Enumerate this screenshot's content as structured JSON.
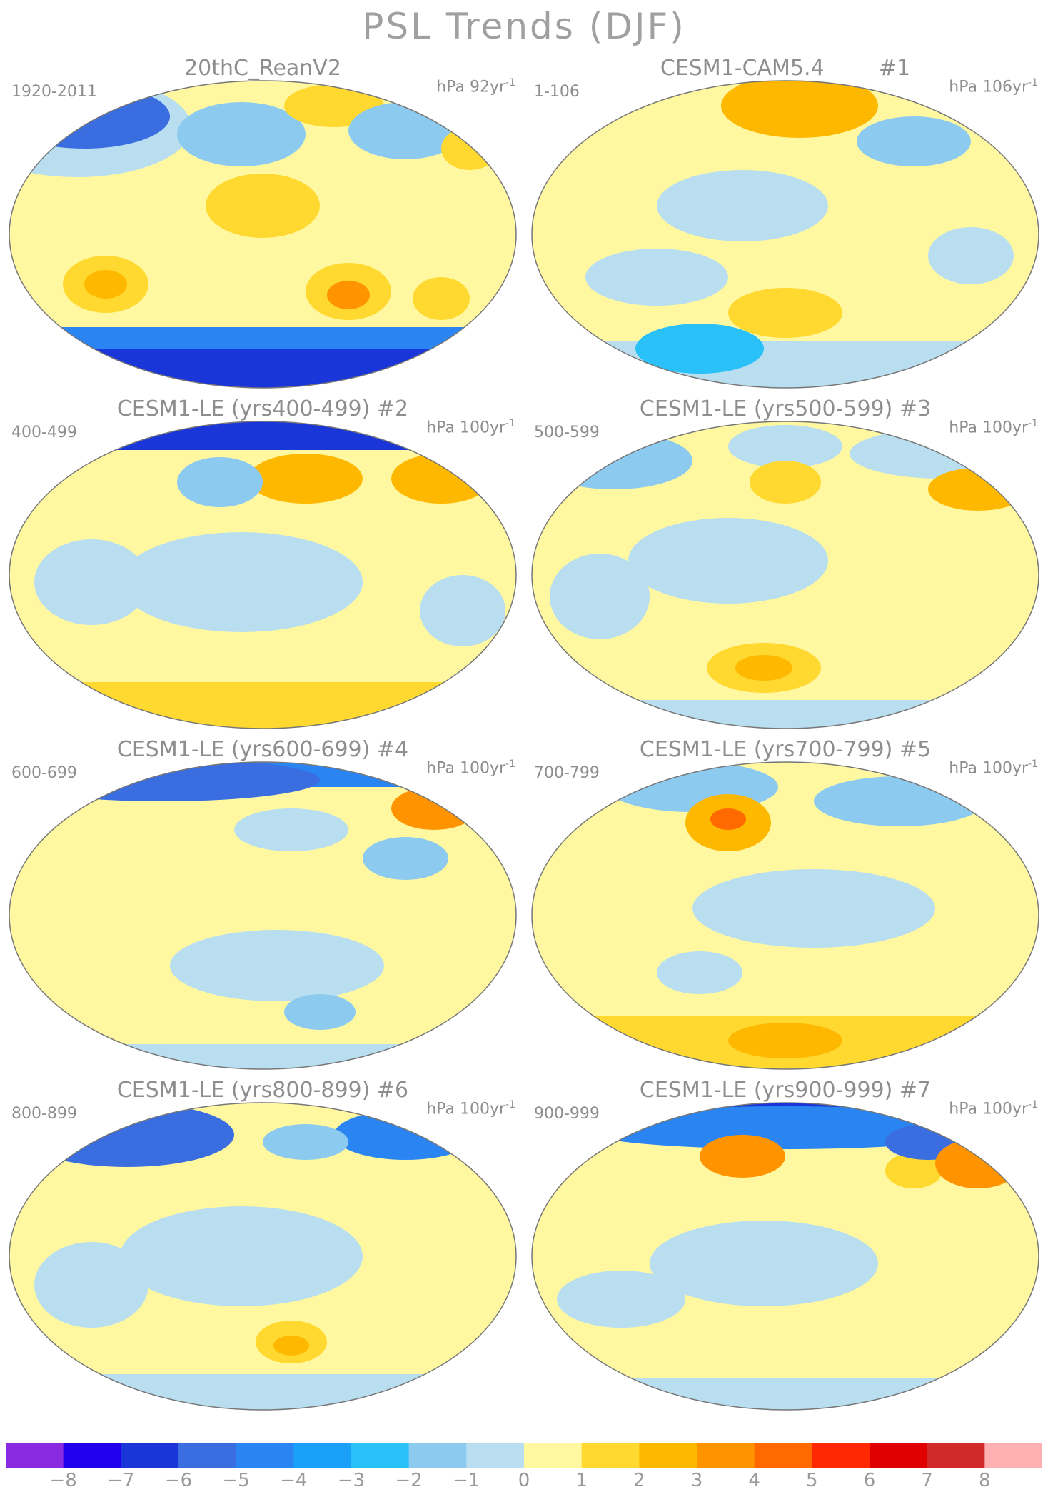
{
  "title": "PSL Trends (DJF)",
  "panels": [
    {
      "id": "p0",
      "title": "20thC_ReanV2",
      "years": "1920-2011",
      "units_prefix": "hPa 92yr",
      "units_exp": "-1"
    },
    {
      "id": "p1",
      "title": "CESM1-CAM5.4        #1",
      "years": "1-106",
      "units_prefix": "hPa 106yr",
      "units_exp": "-1"
    },
    {
      "id": "p2",
      "title": "CESM1-LE (yrs400-499) #2",
      "years": "400-499",
      "units_prefix": "hPa 100yr",
      "units_exp": "-1"
    },
    {
      "id": "p3",
      "title": "CESM1-LE (yrs500-599) #3",
      "years": "500-599",
      "units_prefix": "hPa 100yr",
      "units_exp": "-1"
    },
    {
      "id": "p4",
      "title": "CESM1-LE (yrs600-699) #4",
      "years": "600-699",
      "units_prefix": "hPa 100yr",
      "units_exp": "-1"
    },
    {
      "id": "p5",
      "title": "CESM1-LE (yrs700-799) #5",
      "years": "700-799",
      "units_prefix": "hPa 100yr",
      "units_exp": "-1"
    },
    {
      "id": "p6",
      "title": "CESM1-LE (yrs800-899) #6",
      "years": "800-899",
      "units_prefix": "hPa 100yr",
      "units_exp": "-1"
    },
    {
      "id": "p7",
      "title": "CESM1-LE (yrs900-999) #7",
      "years": "900-999",
      "units_prefix": "hPa 100yr",
      "units_exp": "-1"
    }
  ],
  "colorbar": {
    "colors": [
      "#8a2be2",
      "#2200ee",
      "#1a35d8",
      "#3a6ee0",
      "#2a84f2",
      "#1aa0f8",
      "#2ac0f8",
      "#8ccaf0",
      "#b8def0",
      "#fff8a0",
      "#ffd830",
      "#ffb800",
      "#ff9400",
      "#ff6a00",
      "#ff2800",
      "#e00000",
      "#d02a2a",
      "#ffb0b0"
    ],
    "labels": [
      "−8",
      "−7",
      "−6",
      "−5",
      "−4",
      "−3",
      "−2",
      "−1",
      "0",
      "1",
      "2",
      "3",
      "4",
      "5",
      "6",
      "7",
      "8"
    ]
  }
}
